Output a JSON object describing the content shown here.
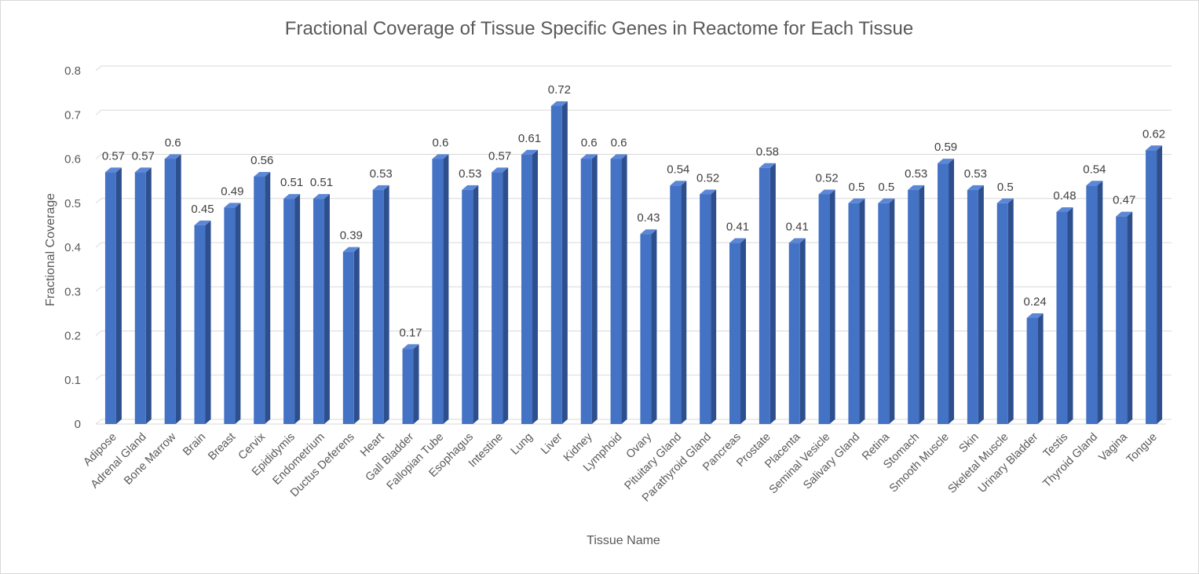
{
  "chart_data": {
    "type": "bar",
    "title": "Fractional Coverage of Tissue Specific Genes in Reactome for Each Tissue",
    "xlabel": "Tissue Name",
    "ylabel": "Fractional Coverage",
    "ylim": [
      0,
      0.8
    ],
    "yticks": [
      "0",
      "0.1",
      "0.2",
      "0.3",
      "0.4",
      "0.5",
      "0.6",
      "0.7",
      "0.8"
    ],
    "grid": true,
    "legend": "none",
    "categories": [
      "Adipose",
      "Adrenal Gland",
      "Bone Marrow",
      "Brain",
      "Breast",
      "Cervix",
      "Epididymis",
      "Endometrium",
      "Ductus Deferens",
      "Heart",
      "Gall Bladder",
      "Fallopian Tube",
      "Esophagus",
      "Intestine",
      "Lung",
      "Liver",
      "Kidney",
      "Lymphoid",
      "Ovary",
      "Pituitary Gland",
      "Parathyroid Gland",
      "Pancreas",
      "Prostate",
      "Placenta",
      "Seminal Vesicle",
      "Salivary Gland",
      "Retina",
      "Stomach",
      "Smooth Muscle",
      "Skin",
      "Skeletal Muscle",
      "Urinary Bladder",
      "Testis",
      "Thyroid Gland",
      "Vagina",
      "Tongue"
    ],
    "values": [
      0.57,
      0.57,
      0.6,
      0.45,
      0.49,
      0.56,
      0.51,
      0.51,
      0.39,
      0.53,
      0.17,
      0.6,
      0.53,
      0.57,
      0.61,
      0.72,
      0.6,
      0.6,
      0.43,
      0.54,
      0.52,
      0.41,
      0.58,
      0.41,
      0.52,
      0.5,
      0.5,
      0.53,
      0.59,
      0.53,
      0.5,
      0.24,
      0.48,
      0.54,
      0.47,
      0.62
    ],
    "data_labels": [
      "0.57",
      "0.57",
      "0.6",
      "0.45",
      "0.49",
      "0.56",
      "0.51",
      "0.51",
      "0.39",
      "0.53",
      "0.17",
      "0.6",
      "0.53",
      "0.57",
      "0.61",
      "0.72",
      "0.6",
      "0.6",
      "0.43",
      "0.54",
      "0.52",
      "0.41",
      "0.58",
      "0.41",
      "0.52",
      "0.5",
      "0.5",
      "0.53",
      "0.59",
      "0.53",
      "0.5",
      "0.24",
      "0.48",
      "0.54",
      "0.47",
      "0.62"
    ],
    "colors": {
      "bar_front": "#4472c4",
      "bar_side": "#2e4f8e",
      "bar_top": "#5b87d6",
      "grid": "#d9d9d9"
    }
  }
}
